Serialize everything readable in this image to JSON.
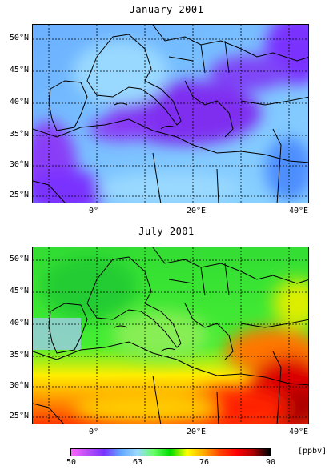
{
  "panels": [
    {
      "title": "January 2001",
      "month": "january"
    },
    {
      "title": "July 2001",
      "month": "july"
    }
  ],
  "lat_labels": [
    "50°N",
    "45°N",
    "40°N",
    "35°N",
    "30°N",
    "25°N"
  ],
  "lon_labels": [
    "0°",
    "20°E",
    "40°E"
  ],
  "colorbar": {
    "ticks": [
      "50",
      "63",
      "76",
      "90"
    ],
    "unit": "[ppbv]",
    "colors": [
      "#ff66ff",
      "#b84df5",
      "#7a33ff",
      "#5fa8ff",
      "#9ad9ff",
      "#66ff66",
      "#00dd00",
      "#ffff00",
      "#ffaa00",
      "#ff4400",
      "#ff0000",
      "#aa0000",
      "#000000"
    ]
  }
}
